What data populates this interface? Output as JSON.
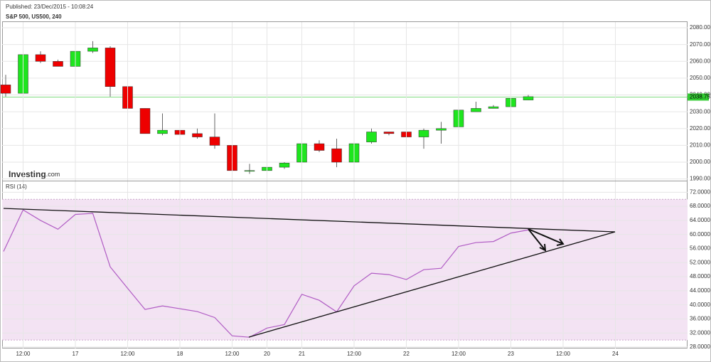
{
  "published": "Published: 23/Dec/2015 - 10:08:24",
  "logo": {
    "name": "Investing",
    "suffix": ".com"
  },
  "chart_data": [
    {
      "type": "candlestick",
      "title": "S&P 500, US500, 240",
      "up_color": "#1ee51e",
      "down_color": "#ee0000",
      "open": [
        2046,
        2041,
        2064,
        2060,
        2057,
        2066,
        2068,
        2045,
        2032,
        2017,
        2019,
        2017,
        2015,
        2010,
        1995,
        1995,
        1997,
        2000,
        2011,
        2008,
        2000,
        2012,
        2018,
        2018,
        2015,
        2019,
        2021,
        2030,
        2032,
        2033,
        2037
      ],
      "high": [
        2052,
        2068,
        2066,
        2061,
        2067,
        2072,
        2069,
        2050,
        2032,
        2029,
        2023,
        2020,
        2029,
        2013,
        1999,
        1999,
        2000,
        2011,
        2013,
        2014,
        2011,
        2020,
        2018,
        2023,
        2020,
        2024,
        2034,
        2036,
        2034,
        2041,
        2040
      ],
      "low": [
        2039,
        2033,
        2059,
        2057,
        2057,
        2065,
        2039,
        2032,
        2017,
        2016,
        2013,
        2014,
        2008,
        1995,
        1993,
        1995,
        1996,
        2000,
        2006,
        1997,
        1999,
        2011,
        2016,
        2015,
        2008,
        2011,
        2017,
        2030,
        2032,
        2033,
        2037
      ],
      "close": [
        2041,
        2064,
        2060,
        2057,
        2066,
        2068,
        2045,
        2032,
        2017,
        2019,
        2016.5,
        2015,
        2010,
        1995,
        1995,
        1997,
        1999.5,
        2011,
        2007,
        2000,
        2011,
        2018,
        2017,
        2015,
        2019,
        2020,
        2031,
        2032,
        2033,
        2038,
        2039
      ],
      "current_price": {
        "value": 2038.75,
        "label": "2038.75",
        "color": "#7fdc7f"
      },
      "ylim": [
        1989,
        2083.4
      ],
      "yticks": [
        {
          "value": 2080,
          "label": "2080.00"
        },
        {
          "value": 2070,
          "label": "2070.00"
        },
        {
          "value": 2060,
          "label": "2060.00"
        },
        {
          "value": 2050,
          "label": "2050.00"
        },
        {
          "value": 2040,
          "label": "2040.00"
        },
        {
          "value": 2030,
          "label": "2030.00"
        },
        {
          "value": 2020,
          "label": "2020.00"
        },
        {
          "value": 2010,
          "label": "2010.00"
        },
        {
          "value": 2000,
          "label": "2000.00"
        },
        {
          "value": 1990,
          "label": "1990.00"
        }
      ],
      "grid": true
    },
    {
      "type": "line",
      "title": "RSI (14)",
      "color": "#b05cc4",
      "band_color": "#f3e3f3",
      "band": [
        30,
        70
      ],
      "values": [
        55.2,
        67,
        64,
        61.5,
        65.7,
        66,
        50.8,
        44.7,
        38.7,
        39.7,
        38.9,
        38.1,
        36.4,
        31.2,
        30.8,
        33.4,
        34.4,
        43,
        41.3,
        38,
        45.4,
        49,
        48.6,
        47.2,
        50,
        50.4,
        56.6,
        57.7,
        58,
        60.4,
        61.3
      ],
      "ylim": [
        27.6,
        75.1
      ],
      "yticks": [
        {
          "value": 72,
          "label": "72.0000"
        },
        {
          "value": 68,
          "label": "68.0000"
        },
        {
          "value": 64,
          "label": "64.0000"
        },
        {
          "value": 60,
          "label": "60.0000"
        },
        {
          "value": 56,
          "label": "56.0000"
        },
        {
          "value": 52,
          "label": "52.0000"
        },
        {
          "value": 48,
          "label": "48.0000"
        },
        {
          "value": 44,
          "label": "44.0000"
        },
        {
          "value": 40,
          "label": "40.0000"
        },
        {
          "value": 36,
          "label": "36.0000"
        },
        {
          "value": 32,
          "label": "32.0000"
        },
        {
          "value": 28,
          "label": "28.0000"
        }
      ],
      "xticks": [
        {
          "value": 1,
          "label": "12:00"
        },
        {
          "value": 4,
          "label": "17"
        },
        {
          "value": 7,
          "label": "12:00"
        },
        {
          "value": 10,
          "label": "18"
        },
        {
          "value": 13,
          "label": "12:00"
        },
        {
          "value": 15,
          "label": "20"
        },
        {
          "value": 17,
          "label": "21"
        },
        {
          "value": 20,
          "label": "12:00"
        },
        {
          "value": 23,
          "label": "22"
        },
        {
          "value": 26,
          "label": "12:00"
        },
        {
          "value": 29,
          "label": "23"
        },
        {
          "value": 32,
          "label": "12:00"
        },
        {
          "value": 35,
          "label": "24"
        }
      ],
      "grid": true
    }
  ]
}
